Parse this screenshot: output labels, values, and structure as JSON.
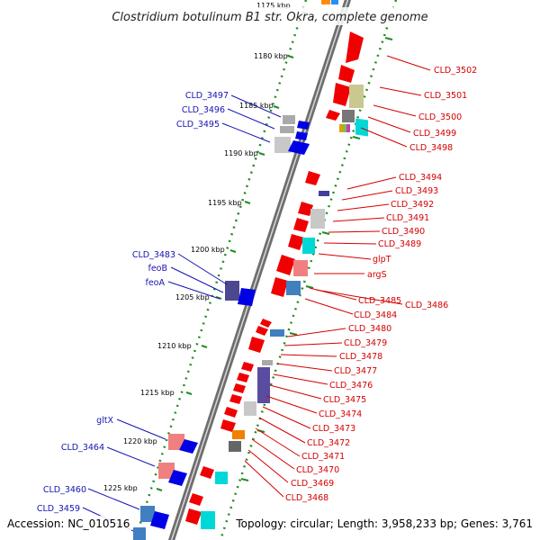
{
  "title": "Clostridium botulinum B1 str. Okra, complete genome",
  "footer": {
    "accession": "Accession: NC_010516",
    "topology": "Topology: circular; Length: 3,958,233 bp; Genes: 3,761"
  },
  "kbp_ticks": [
    "1175 kbp",
    "1180 kbp",
    "1185 kbp",
    "1190 kbp",
    "1195 kbp",
    "1200 kbp",
    "1205 kbp",
    "1210 kbp",
    "1215 kbp",
    "1220 kbp",
    "1225 kbp"
  ],
  "labels_right": [
    "CLD_3502",
    "CLD_3501",
    "CLD_3500",
    "CLD_3499",
    "CLD_3498",
    "CLD_3494",
    "CLD_3493",
    "CLD_3492",
    "CLD_3491",
    "CLD_3490",
    "CLD_3489",
    "glpT",
    "argS",
    "CLD_3485",
    "CLD_3486",
    "CLD_3484",
    "CLD_3480",
    "CLD_3479",
    "CLD_3478",
    "CLD_3477",
    "CLD_3476",
    "CLD_3475",
    "CLD_3474",
    "CLD_3473",
    "CLD_3472",
    "CLD_3471",
    "CLD_3470",
    "CLD_3469",
    "CLD_3468"
  ],
  "labels_left": [
    "CLD_3497",
    "CLD_3496",
    "CLD_3495",
    "CLD_3483",
    "feoB",
    "feoA",
    "gltX",
    "CLD_3464",
    "CLD_3460",
    "CLD_3459"
  ],
  "colors": {
    "forward_label": "#d40000",
    "reverse_label": "#1414b4",
    "forward_gene": "#f00000",
    "reverse_gene": "#0000e6",
    "backbone": "#777777",
    "tick_dots": "#228b22"
  }
}
